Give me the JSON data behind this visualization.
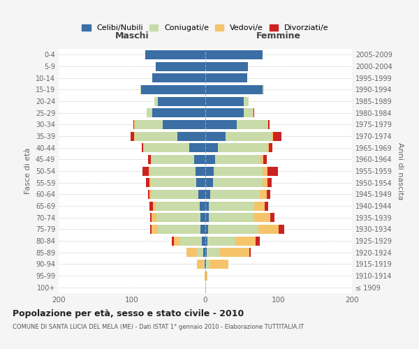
{
  "age_groups": [
    "100+",
    "95-99",
    "90-94",
    "85-89",
    "80-84",
    "75-79",
    "70-74",
    "65-69",
    "60-64",
    "55-59",
    "50-54",
    "45-49",
    "40-44",
    "35-39",
    "30-34",
    "25-29",
    "20-24",
    "15-19",
    "10-14",
    "5-9",
    "0-4"
  ],
  "birth_years": [
    "≤ 1909",
    "1910-1914",
    "1915-1919",
    "1920-1924",
    "1925-1929",
    "1930-1934",
    "1935-1939",
    "1940-1944",
    "1945-1949",
    "1950-1954",
    "1955-1959",
    "1960-1964",
    "1965-1969",
    "1970-1974",
    "1975-1979",
    "1980-1984",
    "1985-1989",
    "1990-1994",
    "1995-1999",
    "2000-2004",
    "2005-2009"
  ],
  "maschi_celibi": [
    0,
    0,
    1,
    3,
    5,
    7,
    7,
    8,
    10,
    12,
    13,
    15,
    22,
    38,
    58,
    72,
    65,
    88,
    72,
    68,
    82
  ],
  "maschi_coniugati": [
    0,
    0,
    2,
    8,
    30,
    58,
    60,
    60,
    63,
    62,
    62,
    58,
    62,
    58,
    38,
    8,
    5,
    1,
    0,
    0,
    0
  ],
  "maschi_vedovi": [
    0,
    1,
    8,
    15,
    8,
    8,
    6,
    3,
    3,
    2,
    2,
    1,
    1,
    1,
    1,
    0,
    0,
    0,
    0,
    0,
    0
  ],
  "maschi_divorziati": [
    0,
    0,
    0,
    0,
    3,
    2,
    2,
    5,
    2,
    5,
    9,
    4,
    2,
    5,
    1,
    0,
    0,
    0,
    0,
    0,
    0
  ],
  "femmine_celibi": [
    0,
    0,
    1,
    2,
    3,
    4,
    5,
    5,
    7,
    10,
    11,
    13,
    17,
    28,
    43,
    52,
    52,
    78,
    57,
    58,
    78
  ],
  "femmine_coniugati": [
    0,
    0,
    5,
    18,
    38,
    68,
    62,
    62,
    67,
    68,
    67,
    62,
    67,
    62,
    42,
    13,
    7,
    2,
    0,
    0,
    0
  ],
  "femmine_vedovi": [
    1,
    3,
    25,
    40,
    28,
    28,
    22,
    14,
    10,
    7,
    7,
    4,
    3,
    2,
    1,
    1,
    0,
    0,
    0,
    0,
    0
  ],
  "femmine_divorziati": [
    0,
    0,
    0,
    2,
    5,
    8,
    5,
    5,
    5,
    5,
    14,
    5,
    4,
    12,
    2,
    1,
    0,
    0,
    0,
    0,
    0
  ],
  "colors": {
    "celibi": "#3a6ea5",
    "coniugati": "#c8dba8",
    "vedovi": "#f5c46a",
    "divorziati": "#cc2222"
  },
  "title": "Popolazione per età, sesso e stato civile - 2010",
  "subtitle": "COMUNE DI SANTA LUCIA DEL MELA (ME) - Dati ISTAT 1° gennaio 2010 - Elaborazione TUTTITALIA.IT",
  "xlabel_maschi": "Maschi",
  "xlabel_femmine": "Femmine",
  "ylabel_left": "Fasce di età",
  "ylabel_right": "Anni di nascita",
  "xlim": 200,
  "bg_color": "#f5f5f5",
  "bar_bg": "#ffffff",
  "legend_labels": [
    "Celibi/Nubili",
    "Coniugati/e",
    "Vedovi/e",
    "Divorziati/e"
  ]
}
